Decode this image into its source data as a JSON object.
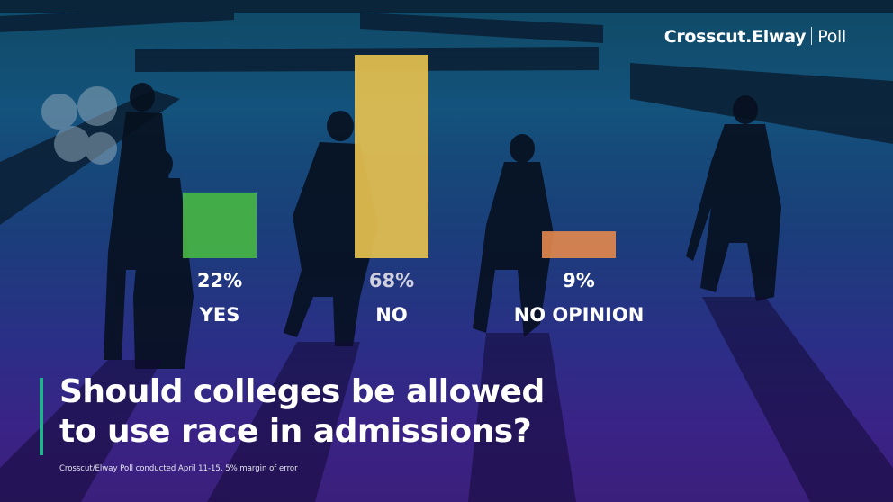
{
  "brand": {
    "name": "Crosscut.Elway",
    "suffix": "Poll"
  },
  "chart_data": {
    "type": "bar",
    "categories": [
      "YES",
      "NO",
      "NO OPINION"
    ],
    "values": [
      22,
      68,
      9
    ],
    "value_labels": [
      "22%",
      "68%",
      "9%"
    ],
    "colors": [
      "#47b544",
      "#e6c04f",
      "#e0874d"
    ],
    "ylim": [
      0,
      68
    ],
    "grid": false,
    "legend": "none"
  },
  "question": {
    "line1": "Should colleges be allowed",
    "line2": "to use race in admissions?"
  },
  "footnote": "Crosscut/Elway Poll conducted April 11-15, 5% margin of error"
}
